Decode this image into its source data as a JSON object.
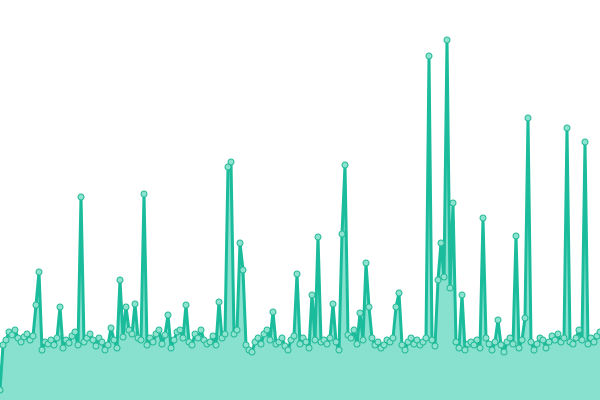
{
  "chart_data": {
    "type": "area",
    "title": "",
    "xlabel": "",
    "ylabel": "",
    "grid": false,
    "legend": "none",
    "ylim": [
      0,
      400
    ],
    "colors": {
      "line": "#1abc9c",
      "area": "#88e0cf",
      "point_fill": "#8ee3d0",
      "point_stroke": "#1fb894"
    },
    "values": [
      10,
      55,
      60,
      68,
      65,
      70,
      62,
      58,
      63,
      66,
      60,
      64,
      95,
      128,
      50,
      58,
      56,
      60,
      55,
      62,
      93,
      52,
      60,
      57,
      64,
      68,
      55,
      203,
      58,
      62,
      66,
      60,
      54,
      62,
      58,
      50,
      55,
      72,
      60,
      52,
      120,
      63,
      93,
      70,
      66,
      96,
      62,
      60,
      206,
      55,
      62,
      58,
      66,
      70,
      56,
      65,
      85,
      52,
      60,
      68,
      70,
      62,
      95,
      58,
      55,
      66,
      62,
      70,
      60,
      56,
      58,
      64,
      55,
      98,
      62,
      66,
      233,
      238,
      66,
      70,
      157,
      130,
      55,
      50,
      48,
      58,
      62,
      56,
      66,
      70,
      60,
      88,
      56,
      58,
      62,
      54,
      50,
      60,
      64,
      126,
      56,
      62,
      58,
      52,
      105,
      60,
      163,
      58,
      60,
      56,
      62,
      96,
      58,
      50,
      166,
      235,
      65,
      62,
      70,
      56,
      87,
      60,
      137,
      93,
      62,
      55,
      58,
      52,
      55,
      60,
      58,
      62,
      93,
      107,
      55,
      50,
      58,
      62,
      56,
      60,
      55,
      58,
      62,
      344,
      60,
      54,
      120,
      157,
      123,
      360,
      112,
      197,
      58,
      52,
      105,
      50,
      56,
      58,
      55,
      60,
      52,
      182,
      62,
      56,
      50,
      58,
      80,
      55,
      48,
      58,
      62,
      56,
      164,
      52,
      60,
      82,
      282,
      58,
      50,
      56,
      62,
      60,
      52,
      58,
      64,
      60,
      66,
      58,
      62,
      272,
      58,
      56,
      62,
      70,
      60,
      258,
      56,
      62,
      58,
      64,
      68
    ]
  }
}
